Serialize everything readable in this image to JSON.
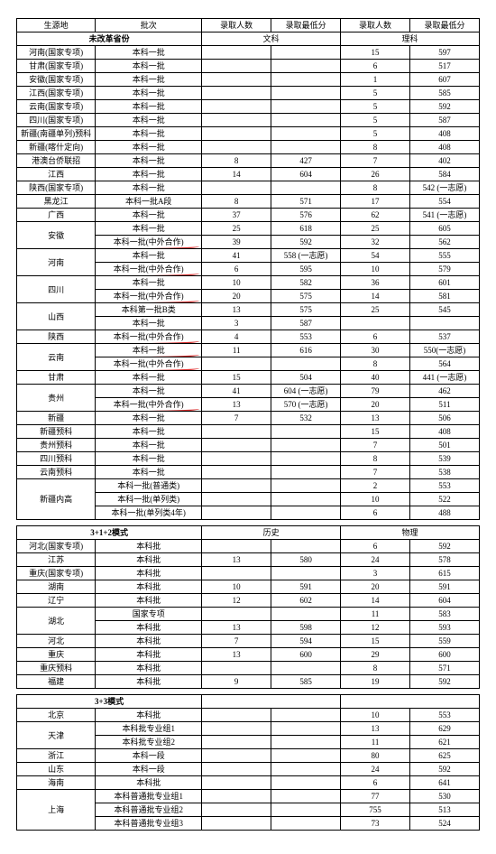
{
  "headers": {
    "origin": "生源地",
    "batch": "批次",
    "count": "录取人数",
    "min": "录取最低分",
    "count2": "录取人数",
    "min2": "录取最低分"
  },
  "section1": {
    "title": "未改革省份",
    "sub1": "文科",
    "sub2": "理科",
    "rows": [
      {
        "o": "河南(国家专项)",
        "b": "本科一批",
        "a": "",
        "m": "",
        "c": "15",
        "n": "597"
      },
      {
        "o": "甘肃(国家专项)",
        "b": "本科一批",
        "a": "",
        "m": "",
        "c": "6",
        "n": "517"
      },
      {
        "o": "安徽(国家专项)",
        "b": "本科一批",
        "a": "",
        "m": "",
        "c": "1",
        "n": "607"
      },
      {
        "o": "江西(国家专项)",
        "b": "本科一批",
        "a": "",
        "m": "",
        "c": "5",
        "n": "585"
      },
      {
        "o": "云南(国家专项)",
        "b": "本科一批",
        "a": "",
        "m": "",
        "c": "5",
        "n": "592"
      },
      {
        "o": "四川(国家专项)",
        "b": "本科一批",
        "a": "",
        "m": "",
        "c": "5",
        "n": "587"
      },
      {
        "o": "新疆(南疆单列)预科",
        "b": "本科一批",
        "a": "",
        "m": "",
        "c": "5",
        "n": "408"
      },
      {
        "o": "新疆(喀什定向)",
        "b": "本科一批",
        "a": "",
        "m": "",
        "c": "8",
        "n": "408"
      },
      {
        "o": "港澳台侨联招",
        "b": "本科一批",
        "a": "8",
        "m": "427",
        "c": "7",
        "n": "402"
      },
      {
        "o": "江西",
        "b": "本科一批",
        "a": "14",
        "m": "604",
        "c": "26",
        "n": "584"
      },
      {
        "o": "陕西(国家专项)",
        "b": "本科一批",
        "a": "",
        "m": "",
        "c": "8",
        "n": "542 (一志愿)"
      },
      {
        "o": "黑龙江",
        "b": "本科一批A段",
        "a": "8",
        "m": "571",
        "c": "17",
        "n": "554"
      },
      {
        "o": "广西",
        "b": "本科一批",
        "a": "37",
        "m": "576",
        "c": "62",
        "n": "541 (一志愿)"
      }
    ],
    "groups": [
      {
        "o": "安徽",
        "rows": [
          {
            "b": "本科一批",
            "a": "25",
            "m": "618",
            "c": "25",
            "n": "605"
          },
          {
            "b": "本科一批(中外合作)",
            "a": "39",
            "m": "592",
            "c": "32",
            "n": "562",
            "mark": true
          }
        ]
      },
      {
        "o": "河南",
        "rows": [
          {
            "b": "本科一批",
            "a": "41",
            "m": "558 (一志愿)",
            "c": "54",
            "n": "555"
          },
          {
            "b": "本科一批(中外合作)",
            "a": "6",
            "m": "595",
            "c": "10",
            "n": "579",
            "mark": true
          }
        ]
      },
      {
        "o": "四川",
        "rows": [
          {
            "b": "本科一批",
            "a": "10",
            "m": "582",
            "c": "36",
            "n": "601"
          },
          {
            "b": "本科一批(中外合作)",
            "a": "20",
            "m": "575",
            "c": "14",
            "n": "581",
            "mark": true
          }
        ]
      },
      {
        "o": "山西",
        "rows": [
          {
            "b": "本科第一批B类",
            "a": "13",
            "m": "575",
            "c": "25",
            "n": "545"
          },
          {
            "b": "本科一批",
            "a": "3",
            "m": "587",
            "c": "",
            "n": ""
          }
        ]
      },
      {
        "o": "陕西",
        "rows": [
          {
            "b": "本科一批(中外合作)",
            "a": "4",
            "m": "553",
            "c": "6",
            "n": "537",
            "mark": true
          }
        ]
      },
      {
        "o": "云南",
        "rows": [
          {
            "b": "本科一批",
            "a": "11",
            "m": "616",
            "c": "30",
            "n": "550(一志愿)",
            "mark": true
          },
          {
            "b": "本科一批(中外合作)",
            "a": "",
            "m": "",
            "c": "8",
            "n": "564",
            "mark": true
          }
        ]
      },
      {
        "o": "甘肃",
        "rows": [
          {
            "b": "本科一批",
            "a": "15",
            "m": "504",
            "c": "40",
            "n": "441 (一志愿)"
          }
        ]
      },
      {
        "o": "贵州",
        "rows": [
          {
            "b": "本科一批",
            "a": "41",
            "m": "604 (一志愿)",
            "c": "79",
            "n": "462"
          },
          {
            "b": "本科一批(中外合作)",
            "a": "13",
            "m": "570 (一志愿)",
            "c": "20",
            "n": "511",
            "mark": true
          }
        ]
      },
      {
        "o": "新疆",
        "rows": [
          {
            "b": "本科一批",
            "a": "7",
            "m": "532",
            "c": "13",
            "n": "506"
          }
        ]
      }
    ],
    "tail": [
      {
        "o": "新疆预科",
        "b": "本科一批",
        "a": "",
        "m": "",
        "c": "15",
        "n": "408"
      },
      {
        "o": "贵州预科",
        "b": "本科一批",
        "a": "",
        "m": "",
        "c": "7",
        "n": "501"
      },
      {
        "o": "四川预科",
        "b": "本科一批",
        "a": "",
        "m": "",
        "c": "8",
        "n": "539"
      },
      {
        "o": "云南预科",
        "b": "本科一批",
        "a": "",
        "m": "",
        "c": "7",
        "n": "538"
      }
    ],
    "xinjiang": {
      "o": "新疆内高",
      "rows": [
        {
          "b": "本科一批(普通类)",
          "a": "",
          "m": "",
          "c": "2",
          "n": "553"
        },
        {
          "b": "本科一批(单列类)",
          "a": "",
          "m": "",
          "c": "10",
          "n": "522"
        },
        {
          "b": "本科一批(单列类4年)",
          "a": "",
          "m": "",
          "c": "6",
          "n": "488"
        }
      ]
    }
  },
  "section2": {
    "title": "3+1+2模式",
    "sub1": "历史",
    "sub2": "物理",
    "rows": [
      {
        "o": "河北(国家专项)",
        "b": "本科批",
        "a": "",
        "m": "",
        "c": "6",
        "n": "592"
      },
      {
        "o": "江苏",
        "b": "本科批",
        "a": "13",
        "m": "580",
        "c": "24",
        "n": "578"
      },
      {
        "o": "重庆(国家专项)",
        "b": "本科批",
        "a": "",
        "m": "",
        "c": "3",
        "n": "615"
      },
      {
        "o": "湖南",
        "b": "本科批",
        "a": "10",
        "m": "591",
        "c": "20",
        "n": "591"
      },
      {
        "o": "辽宁",
        "b": "本科批",
        "a": "12",
        "m": "602",
        "c": "14",
        "n": "604"
      }
    ],
    "hubei": {
      "o": "湖北",
      "rows": [
        {
          "b": "国家专项",
          "a": "",
          "m": "",
          "c": "11",
          "n": "583"
        },
        {
          "b": "本科批",
          "a": "13",
          "m": "598",
          "c": "12",
          "n": "593"
        }
      ]
    },
    "tail": [
      {
        "o": "河北",
        "b": "本科批",
        "a": "7",
        "m": "594",
        "c": "15",
        "n": "559"
      },
      {
        "o": "重庆",
        "b": "本科批",
        "a": "13",
        "m": "600",
        "c": "29",
        "n": "600"
      },
      {
        "o": "重庆预科",
        "b": "本科批",
        "a": "",
        "m": "",
        "c": "8",
        "n": "571"
      },
      {
        "o": "福建",
        "b": "本科批",
        "a": "9",
        "m": "585",
        "c": "19",
        "n": "592"
      }
    ]
  },
  "section3": {
    "title": "3+3模式",
    "rows": [
      {
        "o": "北京",
        "b": "本科批",
        "a": "",
        "m": "",
        "c": "10",
        "n": "553"
      }
    ],
    "tianjin": {
      "o": "天津",
      "rows": [
        {
          "b": "本科批专业组1",
          "a": "",
          "m": "",
          "c": "13",
          "n": "629"
        },
        {
          "b": "本科批专业组2",
          "a": "",
          "m": "",
          "c": "11",
          "n": "621"
        }
      ]
    },
    "tail": [
      {
        "o": "浙江",
        "b": "本科一段",
        "a": "",
        "m": "",
        "c": "80",
        "n": "625"
      },
      {
        "o": "山东",
        "b": "本科一段",
        "a": "",
        "m": "",
        "c": "24",
        "n": "592"
      },
      {
        "o": "海南",
        "b": "本科批",
        "a": "",
        "m": "",
        "c": "6",
        "n": "641"
      }
    ],
    "shanghai": {
      "o": "上海",
      "rows": [
        {
          "b": "本科普通批专业组1",
          "a": "",
          "m": "",
          "c": "77",
          "n": "530"
        },
        {
          "b": "本科普通批专业组2",
          "a": "",
          "m": "",
          "c": "755",
          "n": "513"
        },
        {
          "b": "本科普通批专业组3",
          "a": "",
          "m": "",
          "c": "73",
          "n": "524"
        }
      ]
    }
  }
}
